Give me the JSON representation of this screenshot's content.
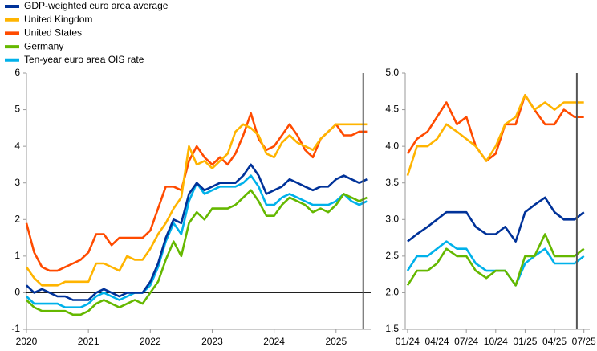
{
  "chart_data": [
    {
      "type": "line",
      "xlim": [
        2020,
        2025.56
      ],
      "ylim": [
        -1,
        6
      ],
      "xticks": [
        2020,
        2021,
        2022,
        2023,
        2024,
        2025
      ],
      "yticks": [
        -1,
        0,
        1,
        2,
        3,
        4,
        5,
        6
      ],
      "hline": 0,
      "vline": 2025.44,
      "x": [
        2020,
        2020.125,
        2020.25,
        2020.375,
        2020.5,
        2020.625,
        2020.75,
        2020.875,
        2021,
        2021.125,
        2021.25,
        2021.375,
        2021.5,
        2021.625,
        2021.75,
        2021.875,
        2022,
        2022.125,
        2022.25,
        2022.375,
        2022.5,
        2022.625,
        2022.75,
        2022.875,
        2023,
        2023.125,
        2023.25,
        2023.375,
        2023.5,
        2023.625,
        2023.75,
        2023.875,
        2024,
        2024.125,
        2024.25,
        2024.375,
        2024.5,
        2024.625,
        2024.75,
        2024.875,
        2025,
        2025.125,
        2025.25,
        2025.375,
        2025.5
      ],
      "series": [
        {
          "name": "GDP-weighted euro area average",
          "color": "#003299",
          "values": [
            0.2,
            0.0,
            0.1,
            0.0,
            -0.1,
            -0.1,
            -0.2,
            -0.2,
            -0.2,
            0.0,
            0.1,
            0.0,
            -0.1,
            0.0,
            0.0,
            0.0,
            0.3,
            0.8,
            1.5,
            2.0,
            1.9,
            2.7,
            3.0,
            2.8,
            2.9,
            3.0,
            3.0,
            3.0,
            3.2,
            3.5,
            3.2,
            2.7,
            2.8,
            2.9,
            3.1,
            3.0,
            2.9,
            2.8,
            2.9,
            2.9,
            3.1,
            3.2,
            3.1,
            3.0,
            3.1
          ]
        },
        {
          "name": "United Kingdom",
          "color": "#ffb400",
          "values": [
            0.7,
            0.4,
            0.2,
            0.2,
            0.2,
            0.3,
            0.3,
            0.3,
            0.3,
            0.8,
            0.8,
            0.7,
            0.6,
            1.0,
            0.9,
            0.9,
            1.2,
            1.6,
            1.9,
            2.3,
            2.6,
            4.0,
            3.5,
            3.6,
            3.4,
            3.6,
            3.8,
            4.4,
            4.6,
            4.5,
            4.3,
            3.8,
            3.7,
            4.1,
            4.3,
            4.1,
            4.0,
            3.9,
            4.2,
            4.4,
            4.6,
            4.6,
            4.6,
            4.6,
            4.6
          ]
        },
        {
          "name": "United States",
          "color": "#ff4b00",
          "values": [
            1.9,
            1.1,
            0.7,
            0.6,
            0.6,
            0.7,
            0.8,
            0.9,
            1.1,
            1.6,
            1.6,
            1.3,
            1.5,
            1.5,
            1.5,
            1.5,
            1.7,
            2.3,
            2.9,
            2.9,
            2.8,
            3.6,
            4.0,
            3.7,
            3.5,
            3.7,
            3.5,
            3.8,
            4.3,
            4.9,
            4.2,
            3.9,
            4.0,
            4.3,
            4.6,
            4.3,
            3.9,
            3.7,
            4.2,
            4.4,
            4.6,
            4.3,
            4.3,
            4.4,
            4.4
          ]
        },
        {
          "name": "Germany",
          "color": "#65b800",
          "values": [
            -0.2,
            -0.4,
            -0.5,
            -0.5,
            -0.5,
            -0.5,
            -0.6,
            -0.6,
            -0.5,
            -0.3,
            -0.2,
            -0.3,
            -0.4,
            -0.3,
            -0.2,
            -0.3,
            0.0,
            0.3,
            0.9,
            1.4,
            1.0,
            1.9,
            2.2,
            2.0,
            2.3,
            2.3,
            2.3,
            2.4,
            2.6,
            2.8,
            2.5,
            2.1,
            2.1,
            2.4,
            2.6,
            2.5,
            2.4,
            2.2,
            2.3,
            2.2,
            2.4,
            2.7,
            2.6,
            2.5,
            2.6
          ]
        },
        {
          "name": "Ten-year euro area OIS rate",
          "color": "#00b1ea",
          "values": [
            -0.1,
            -0.3,
            -0.3,
            -0.3,
            -0.3,
            -0.4,
            -0.4,
            -0.4,
            -0.3,
            -0.1,
            0.0,
            -0.1,
            -0.2,
            -0.1,
            0.0,
            0.0,
            0.2,
            0.7,
            1.4,
            1.9,
            1.6,
            2.5,
            3.0,
            2.7,
            2.8,
            2.9,
            2.9,
            2.9,
            3.0,
            3.2,
            2.9,
            2.4,
            2.4,
            2.6,
            2.7,
            2.6,
            2.5,
            2.4,
            2.4,
            2.4,
            2.5,
            2.7,
            2.5,
            2.4,
            2.5
          ]
        }
      ]
    },
    {
      "type": "line",
      "xlim": [
        2023.98,
        2025.55
      ],
      "ylim": [
        1.5,
        5
      ],
      "xticks": [
        {
          "value": 2024,
          "label": "01/24"
        },
        {
          "value": 2024.25,
          "label": "04/24"
        },
        {
          "value": 2024.5,
          "label": "07/24"
        },
        {
          "value": 2024.75,
          "label": "10/24"
        },
        {
          "value": 2025,
          "label": "01/25"
        },
        {
          "value": 2025.25,
          "label": "04/25"
        },
        {
          "value": 2025.5,
          "label": "07/25"
        }
      ],
      "yticks": [
        1.5,
        {
          "value": 2,
          "label": "2.0"
        },
        2.5,
        {
          "value": 3,
          "label": "3.0"
        },
        3.5,
        {
          "value": 4,
          "label": "4.0"
        },
        4.5,
        {
          "value": 5,
          "label": "5.0"
        }
      ],
      "vline": 2025.44,
      "x": [
        2024,
        2024.08,
        2024.17,
        2024.25,
        2024.33,
        2024.42,
        2024.5,
        2024.58,
        2024.67,
        2024.75,
        2024.83,
        2024.92,
        2025,
        2025.08,
        2025.17,
        2025.25,
        2025.33,
        2025.42,
        2025.5
      ],
      "series": [
        {
          "color": "#003299",
          "values": [
            2.7,
            2.8,
            2.9,
            3.0,
            3.1,
            3.1,
            3.1,
            2.9,
            2.8,
            2.8,
            2.9,
            2.7,
            3.1,
            3.2,
            3.3,
            3.1,
            3.0,
            3.0,
            3.1
          ]
        },
        {
          "color": "#ffb400",
          "values": [
            3.6,
            4.0,
            4.0,
            4.1,
            4.3,
            4.2,
            4.1,
            4.0,
            3.8,
            4.0,
            4.3,
            4.4,
            4.7,
            4.5,
            4.6,
            4.5,
            4.6,
            4.6,
            4.6
          ]
        },
        {
          "color": "#ff4b00",
          "values": [
            3.9,
            4.1,
            4.2,
            4.4,
            4.6,
            4.3,
            4.4,
            4.0,
            3.8,
            3.9,
            4.3,
            4.3,
            4.7,
            4.5,
            4.3,
            4.3,
            4.5,
            4.4,
            4.4
          ]
        },
        {
          "color": "#65b800",
          "values": [
            2.1,
            2.3,
            2.3,
            2.4,
            2.6,
            2.5,
            2.5,
            2.3,
            2.2,
            2.3,
            2.3,
            2.1,
            2.5,
            2.5,
            2.8,
            2.5,
            2.5,
            2.5,
            2.6
          ]
        },
        {
          "color": "#00b1ea",
          "values": [
            2.3,
            2.5,
            2.5,
            2.6,
            2.7,
            2.6,
            2.6,
            2.4,
            2.3,
            2.3,
            2.3,
            2.1,
            2.4,
            2.5,
            2.6,
            2.4,
            2.4,
            2.4,
            2.5
          ]
        }
      ]
    }
  ]
}
